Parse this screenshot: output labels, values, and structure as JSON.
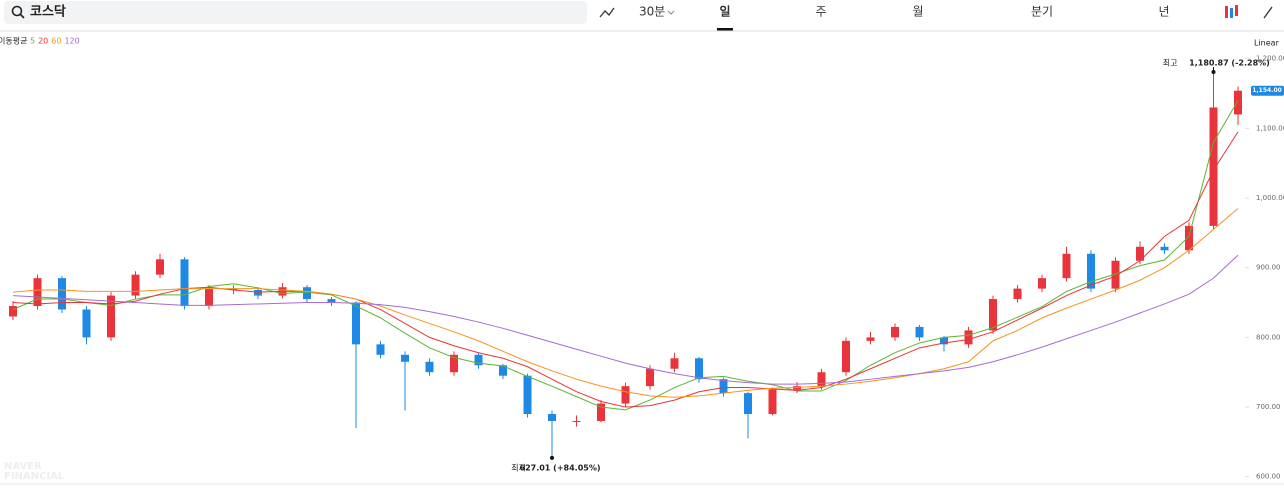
{
  "toolbar": {
    "search": "코스닥",
    "interval": "30분",
    "tabs": [
      "일",
      "주",
      "월",
      "분기",
      "년"
    ],
    "active_tab": 0
  },
  "chart_data": {
    "type": "candlestick",
    "scale": "Linear",
    "up_color": "#e8343a",
    "down_color": "#1e88e5",
    "open": [
      830,
      845,
      885,
      840,
      800,
      860,
      890,
      912,
      845,
      870,
      868,
      860,
      872,
      855,
      850,
      790,
      775,
      765,
      750,
      775,
      760,
      745,
      690,
      680,
      680,
      705,
      730,
      755,
      770,
      740,
      720,
      690,
      725,
      730,
      750,
      795,
      800,
      815,
      800,
      790,
      810,
      855,
      870,
      885,
      920,
      870,
      910,
      930,
      925,
      960,
      1120
    ],
    "high": [
      852,
      890,
      888,
      845,
      865,
      895,
      920,
      915,
      875,
      875,
      872,
      878,
      875,
      858,
      852,
      795,
      780,
      770,
      780,
      778,
      762,
      748,
      695,
      688,
      710,
      735,
      760,
      778,
      772,
      742,
      722,
      728,
      736,
      755,
      800,
      808,
      820,
      818,
      802,
      815,
      860,
      875,
      890,
      930,
      925,
      915,
      938,
      935,
      965,
      1180.87,
      1160
    ],
    "low": [
      825,
      840,
      835,
      790,
      795,
      855,
      885,
      840,
      840,
      862,
      855,
      856,
      850,
      845,
      670,
      770,
      695,
      745,
      745,
      755,
      740,
      685,
      627.01,
      672,
      678,
      700,
      725,
      750,
      735,
      715,
      655,
      688,
      720,
      725,
      745,
      790,
      795,
      795,
      780,
      785,
      805,
      850,
      865,
      880,
      865,
      865,
      905,
      920,
      920,
      955,
      1105
    ],
    "close": [
      845,
      885,
      840,
      800,
      860,
      890,
      912,
      845,
      870,
      868,
      860,
      872,
      855,
      850,
      790,
      775,
      765,
      750,
      775,
      760,
      745,
      690,
      680,
      680,
      705,
      730,
      755,
      770,
      740,
      720,
      690,
      725,
      730,
      750,
      795,
      800,
      815,
      800,
      790,
      810,
      855,
      870,
      885,
      920,
      870,
      910,
      930,
      925,
      960,
      1130,
      1154
    ],
    "legend_title": "이동평균",
    "series": [
      {
        "name": "5",
        "color": "#5cb531",
        "values": [
          840,
          855,
          855,
          850,
          846,
          855,
          861,
          861,
          873,
          877,
          871,
          863,
          865,
          861,
          845,
          828,
          806,
          785,
          771,
          763,
          759,
          744,
          730,
          715,
          700,
          696,
          710,
          728,
          742,
          744,
          737,
          732,
          723,
          723,
          738,
          760,
          778,
          792,
          800,
          803,
          814,
          829,
          844,
          866,
          880,
          891,
          903,
          911,
          945,
          1080,
          1140
        ]
      },
      {
        "name": "20",
        "color": "#e8343a",
        "values": [
          850,
          848,
          850,
          850,
          848,
          852,
          862,
          870,
          872,
          868,
          865,
          866,
          866,
          862,
          855,
          840,
          820,
          800,
          788,
          778,
          770,
          758,
          740,
          722,
          708,
          700,
          702,
          710,
          722,
          728,
          728,
          726,
          724,
          728,
          740,
          755,
          770,
          785,
          792,
          797,
          808,
          825,
          842,
          860,
          875,
          888,
          910,
          945,
          968,
          1040,
          1095
        ]
      },
      {
        "name": "60",
        "color": "#f7931e",
        "values": [
          865,
          868,
          868,
          866,
          866,
          866,
          868,
          870,
          870,
          870,
          870,
          868,
          866,
          862,
          855,
          845,
          832,
          820,
          808,
          795,
          780,
          765,
          752,
          740,
          730,
          722,
          716,
          714,
          716,
          720,
          724,
          727,
          728,
          730,
          733,
          737,
          742,
          748,
          755,
          765,
          795,
          810,
          828,
          842,
          855,
          868,
          882,
          900,
          925,
          955,
          985
        ]
      },
      {
        "name": "120",
        "color": "#a56bd6",
        "values": [
          860,
          858,
          856,
          854,
          852,
          850,
          848,
          846,
          846,
          847,
          848,
          849,
          850,
          850,
          849,
          847,
          843,
          837,
          830,
          822,
          813,
          803,
          793,
          783,
          773,
          763,
          755,
          748,
          742,
          738,
          735,
          733,
          733,
          734,
          736,
          740,
          744,
          748,
          752,
          757,
          765,
          775,
          786,
          798,
          810,
          822,
          835,
          848,
          862,
          885,
          918
        ]
      }
    ],
    "ylim": [
      591,
      1234
    ],
    "yticks": [
      {
        "value": 600,
        "label": "600.00"
      },
      {
        "value": 700,
        "label": "700.00"
      },
      {
        "value": 800,
        "label": "800.00"
      },
      {
        "value": 900,
        "label": "900.00"
      },
      {
        "value": 1000,
        "label": "1,000.00"
      },
      {
        "value": 1100,
        "label": "1,100.00"
      },
      {
        "value": 1200,
        "label": "1,200.00"
      }
    ],
    "current_price": {
      "value": 1154,
      "label": "1,154.00"
    },
    "high_note": {
      "label": "최고",
      "text": "1,180.87 (-2.28%)"
    },
    "low_note": {
      "label": "최저",
      "text": "627.01 (+84.05%)"
    },
    "watermark": [
      "NAVER",
      "FINANCIAL"
    ]
  }
}
